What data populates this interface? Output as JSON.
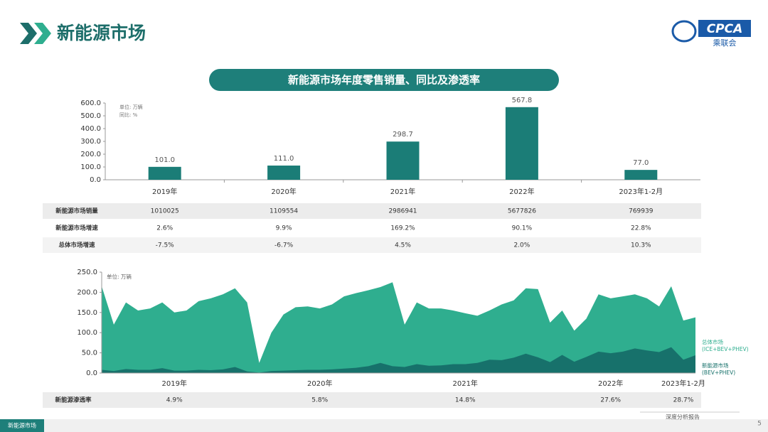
{
  "header": {
    "title": "新能源市场",
    "logo": "CPCA",
    "logo_sub": "乘联会"
  },
  "banner": "新能源市场年度零售销量、同比及渗透率",
  "chart_data": [
    {
      "type": "bar",
      "notes": [
        "单位: 万辆",
        "同比: %"
      ],
      "categories": [
        "2019年",
        "2020年",
        "2021年",
        "2022年",
        "2023年1-2月"
      ],
      "values": [
        101.0,
        111.0,
        298.7,
        567.8,
        77.0
      ],
      "value_labels": [
        "101.0",
        "111.0",
        "298.7",
        "567.8",
        "77.0"
      ],
      "color": "#1b7d77",
      "ylim": [
        0,
        600
      ],
      "yticks": [
        {
          "value": 0,
          "label": "0.0"
        },
        {
          "value": 100,
          "label": "100.0"
        },
        {
          "value": 200,
          "label": "200.0"
        },
        {
          "value": 300,
          "label": "300.0"
        },
        {
          "value": 400,
          "label": "400.0"
        },
        {
          "value": 500,
          "label": "500.0"
        },
        {
          "value": 600,
          "label": "600.0"
        }
      ]
    },
    {
      "type": "area",
      "notes": [
        "单位: 万辆"
      ],
      "categories": [
        null,
        null,
        null,
        null,
        null,
        null,
        "2019年",
        null,
        null,
        null,
        null,
        null,
        null,
        null,
        null,
        null,
        null,
        null,
        "2020年",
        null,
        null,
        null,
        null,
        null,
        null,
        null,
        null,
        null,
        null,
        null,
        "2021年",
        null,
        null,
        null,
        null,
        null,
        null,
        null,
        null,
        null,
        null,
        null,
        "2022年",
        null,
        null,
        null,
        null,
        null,
        "2023年1-2月",
        null
      ],
      "series": [
        {
          "name": "总体市场(ICE+BEV+PHEV)",
          "color": "#2fae8f",
          "values": [
            215,
            120,
            175,
            155,
            160,
            175,
            150,
            155,
            178,
            185,
            195,
            210,
            175,
            25,
            100,
            145,
            163,
            165,
            160,
            170,
            190,
            198,
            205,
            213,
            225,
            120,
            175,
            160,
            160,
            155,
            148,
            142,
            155,
            170,
            180,
            210,
            208,
            125,
            155,
            105,
            135,
            195,
            185,
            190,
            195,
            185,
            165,
            215,
            130,
            138
          ]
        },
        {
          "name": "新能源市场(BEV+PHEV)",
          "color": "#17716b",
          "values": [
            8,
            5,
            10,
            8,
            8,
            12,
            6,
            6,
            8,
            7,
            9,
            15,
            4,
            1,
            5,
            6,
            7,
            8,
            8,
            9,
            11,
            13,
            17,
            25,
            17,
            15,
            22,
            18,
            19,
            22,
            22,
            25,
            33,
            32,
            38,
            48,
            39,
            27,
            45,
            28,
            40,
            53,
            49,
            53,
            61,
            56,
            52,
            64,
            33,
            44
          ]
        }
      ],
      "ylim": [
        0,
        250
      ],
      "yticks": [
        {
          "value": 0,
          "label": "0.0"
        },
        {
          "value": 50,
          "label": "50.0"
        },
        {
          "value": 100,
          "label": "100.0"
        },
        {
          "value": 150,
          "label": "150.0"
        },
        {
          "value": 200,
          "label": "200.0"
        },
        {
          "value": 250,
          "label": "250.0"
        }
      ]
    }
  ],
  "table": {
    "rows": [
      {
        "label": "新能源市场销量",
        "cells": [
          "1010025",
          "1109554",
          "2986941",
          "5677826",
          "769939"
        ]
      },
      {
        "label": "新能源市场增速",
        "cells": [
          "2.6%",
          "9.9%",
          "169.2%",
          "90.1%",
          "22.8%"
        ]
      },
      {
        "label": "总体市场增速",
        "cells": [
          "-7.5%",
          "-6.7%",
          "4.5%",
          "2.0%",
          "10.3%"
        ]
      }
    ]
  },
  "penetration_row": {
    "label": "新能源渗透率",
    "cells": [
      "4.9%",
      "5.8%",
      "14.8%",
      "27.6%",
      "28.7%"
    ]
  },
  "footer": {
    "tab": "新能源市场",
    "report": "深度分析报告",
    "page": "5"
  }
}
